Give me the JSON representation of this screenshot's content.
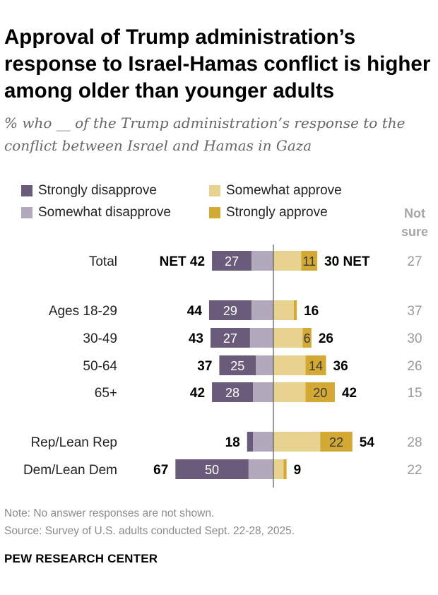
{
  "title": "Approval of Trump administration’s response to Israel-Hamas conflict is higher among older than younger adults",
  "subtitle": "% who __ of the Trump administration’s response to the conflict between Israel and Hamas in Gaza",
  "legend": [
    {
      "name": "Strongly disapprove",
      "color": "#6b5b7a"
    },
    {
      "name": "Somewhat disapprove",
      "color": "#b3a9bd"
    },
    {
      "name": "Somewhat approve",
      "color": "#e8d28f"
    },
    {
      "name": "Strongly approve",
      "color": "#d3a934"
    }
  ],
  "not_sure_header": "Not sure",
  "net_word": "NET",
  "chart_data": {
    "type": "bar",
    "orientation": "horizontal-diverging",
    "categories": [
      "Total",
      "Ages 18-29",
      "30-49",
      "50-64",
      "65+",
      "Rep/Lean Rep",
      "Dem/Lean Dem"
    ],
    "series": [
      {
        "name": "Strongly disapprove",
        "values": [
          27,
          29,
          27,
          25,
          28,
          4,
          50
        ]
      },
      {
        "name": "Somewhat disapprove",
        "values": [
          15,
          15,
          16,
          12,
          14,
          14,
          17
        ]
      },
      {
        "name": "Somewhat approve",
        "values": [
          19,
          14,
          20,
          22,
          22,
          32,
          7
        ]
      },
      {
        "name": "Strongly approve",
        "values": [
          11,
          2,
          6,
          14,
          20,
          22,
          2
        ]
      }
    ],
    "net_disapprove": [
      42,
      44,
      43,
      37,
      42,
      18,
      67
    ],
    "net_approve": [
      30,
      16,
      26,
      36,
      42,
      54,
      9
    ],
    "not_sure": [
      27,
      37,
      30,
      26,
      15,
      28,
      22
    ],
    "label_min": 6
  },
  "note": "Note: No answer responses are not shown.",
  "source": "Source: Survey of U.S. adults conducted Sept. 22-28, 2025.",
  "brand": "PEW RESEARCH CENTER"
}
